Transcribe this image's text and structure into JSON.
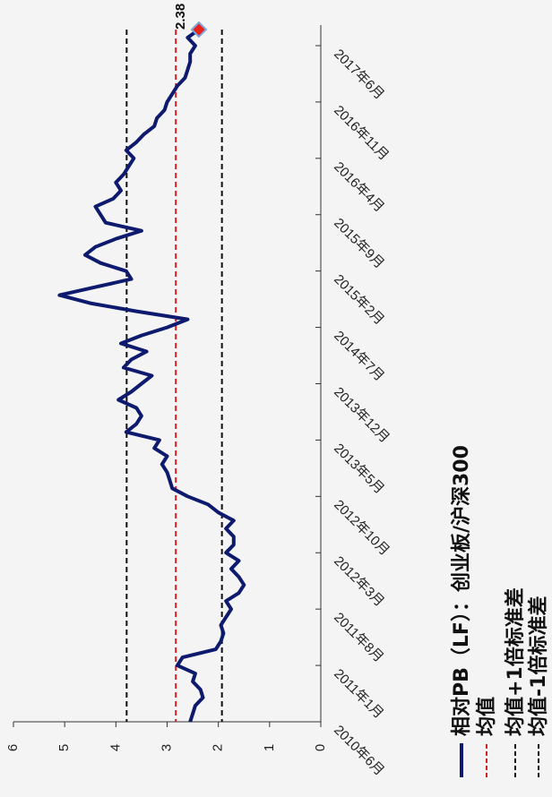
{
  "chart_data": {
    "type": "line",
    "title": "",
    "xlabel": "",
    "ylabel": "",
    "ylim": [
      0,
      6
    ],
    "yticks": [
      0,
      1,
      2,
      3,
      4,
      5,
      6
    ],
    "x_tick_labels": [
      "2010年6月",
      "2011年1月",
      "2011年8月",
      "2012年3月",
      "2012年10月",
      "2013年5月",
      "2013年12月",
      "2014年7月",
      "2015年2月",
      "2015年9月",
      "2016年4月",
      "2016年11月",
      "2017年6月"
    ],
    "x_start_month": "2010-06",
    "series": [
      {
        "name": "相对PB（LF）：创业板/沪深300",
        "color": "#0d1a6e",
        "months_from_start": [
          0,
          1,
          2,
          3,
          4,
          5,
          6,
          7,
          8,
          9,
          10,
          11,
          12,
          13,
          14,
          15,
          16,
          17,
          18,
          19,
          20,
          21,
          22,
          23,
          24,
          25,
          26,
          27,
          28,
          29,
          30,
          31,
          32,
          33,
          34,
          35,
          36,
          37,
          38,
          39,
          40,
          41,
          42,
          43,
          44,
          45,
          46,
          47,
          48,
          49,
          50,
          51,
          52,
          53,
          54,
          55,
          56,
          57,
          58,
          59,
          60,
          61,
          62,
          63,
          64,
          65,
          66,
          67,
          68,
          69,
          70,
          71,
          72,
          73,
          74,
          75,
          76,
          77,
          78,
          79,
          80,
          81,
          82,
          83,
          84,
          85,
          86
        ],
        "values": [
          2.55,
          2.5,
          2.45,
          2.3,
          2.35,
          2.5,
          2.45,
          2.8,
          2.7,
          2.05,
          1.95,
          1.9,
          1.95,
          1.85,
          1.75,
          1.85,
          1.6,
          1.5,
          1.6,
          1.75,
          1.6,
          1.85,
          1.7,
          1.7,
          1.85,
          1.7,
          2.0,
          2.2,
          2.6,
          2.9,
          2.95,
          3.0,
          3.1,
          3.0,
          3.25,
          3.15,
          3.8,
          3.6,
          3.5,
          3.6,
          3.95,
          3.7,
          3.5,
          3.3,
          3.85,
          3.7,
          3.4,
          3.9,
          3.5,
          3.0,
          2.6,
          3.6,
          4.5,
          5.1,
          4.4,
          3.7,
          3.8,
          4.3,
          4.6,
          4.4,
          4.0,
          3.5,
          4.2,
          4.3,
          4.4,
          4.05,
          3.9,
          4.0,
          3.85,
          3.75,
          3.65,
          3.8,
          3.6,
          3.45,
          3.25,
          3.2,
          3.05,
          3.0,
          2.9,
          2.8,
          2.65,
          2.6,
          2.55,
          2.55,
          2.45,
          2.6,
          2.38
        ]
      }
    ],
    "mean": 2.83,
    "upper_band": 3.79,
    "lower_band": 1.93,
    "last_value_label": "2.38",
    "legend": {
      "placement": "bottom",
      "items": [
        {
          "label": "相对PB（LF）：创业板/沪深300",
          "color": "#0d1a6e",
          "style": "solid"
        },
        {
          "label": "均值",
          "color": "#d42020",
          "style": "dashed"
        },
        {
          "label": "均值+1倍标准差",
          "color": "#111111",
          "style": "dashed"
        },
        {
          "label": "均值-1倍标准差",
          "color": "#111111",
          "style": "dashed"
        }
      ]
    },
    "grid": false
  }
}
